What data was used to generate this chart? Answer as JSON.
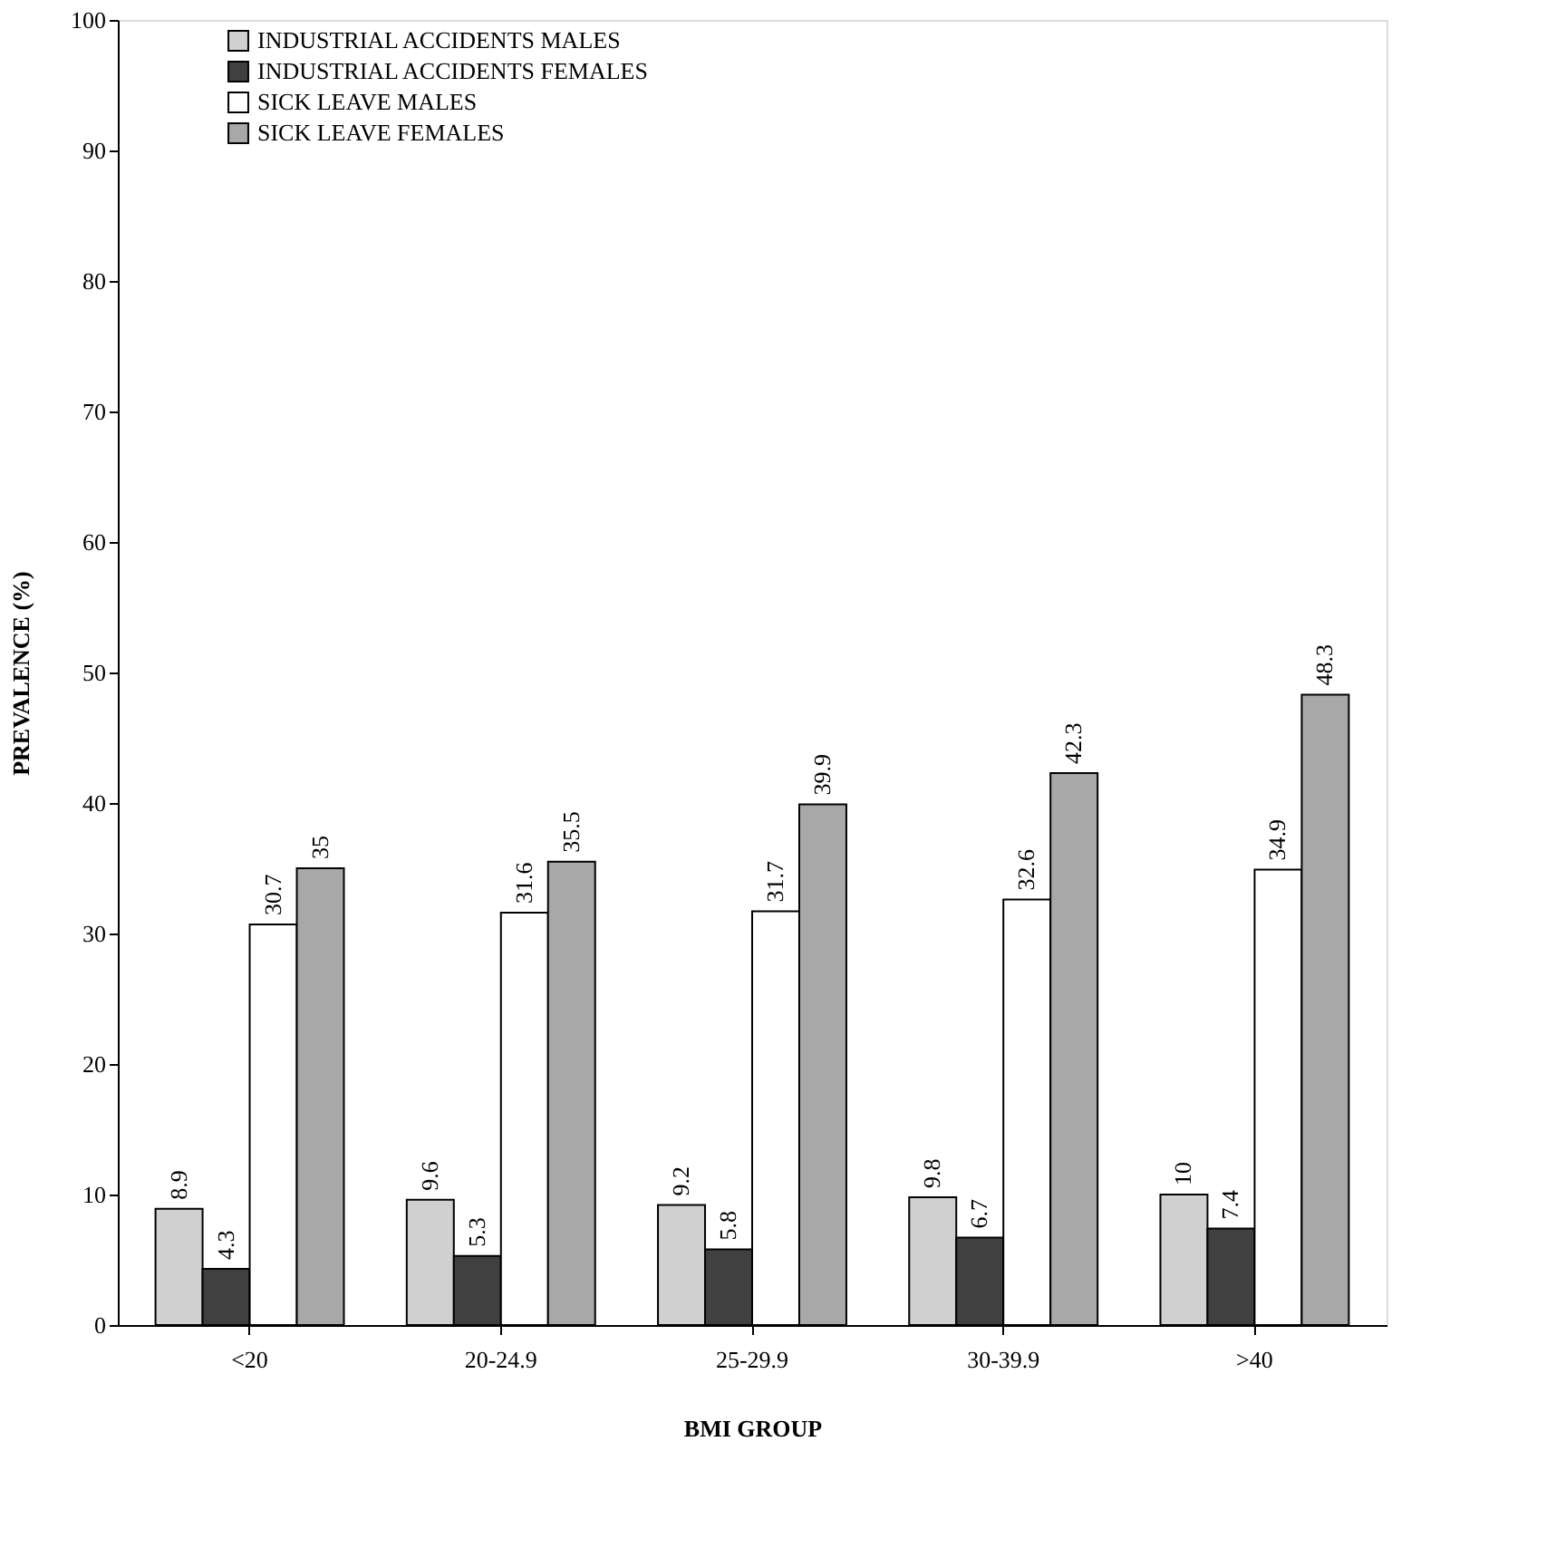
{
  "chart_data": {
    "type": "bar",
    "xlabel": "BMI GROUP",
    "ylabel": "PREVALENCE (%)",
    "categories": [
      "<20",
      "20-24.9",
      "25-29.9",
      "30-39.9",
      ">40"
    ],
    "series": [
      {
        "name": "INDUSTRIAL ACCIDENTS MALES",
        "color": "#d0d0d0",
        "values": [
          8.9,
          9.6,
          9.2,
          9.8,
          10
        ]
      },
      {
        "name": "INDUSTRIAL ACCIDENTS FEMALES",
        "color": "#404040",
        "values": [
          4.3,
          5.3,
          5.8,
          6.7,
          7.4
        ]
      },
      {
        "name": "SICK LEAVE MALES",
        "color": "#ffffff",
        "values": [
          30.7,
          31.6,
          31.7,
          32.6,
          34.9
        ]
      },
      {
        "name": "SICK LEAVE FEMALES",
        "color": "#a8a8a8",
        "values": [
          35,
          35.5,
          39.9,
          42.3,
          48.3
        ]
      }
    ],
    "ylim": [
      0,
      100
    ],
    "yticks": [
      0,
      10,
      20,
      30,
      40,
      50,
      60,
      70,
      80,
      90,
      100
    ],
    "data_labels": true,
    "grid": false,
    "legend": "top left"
  }
}
